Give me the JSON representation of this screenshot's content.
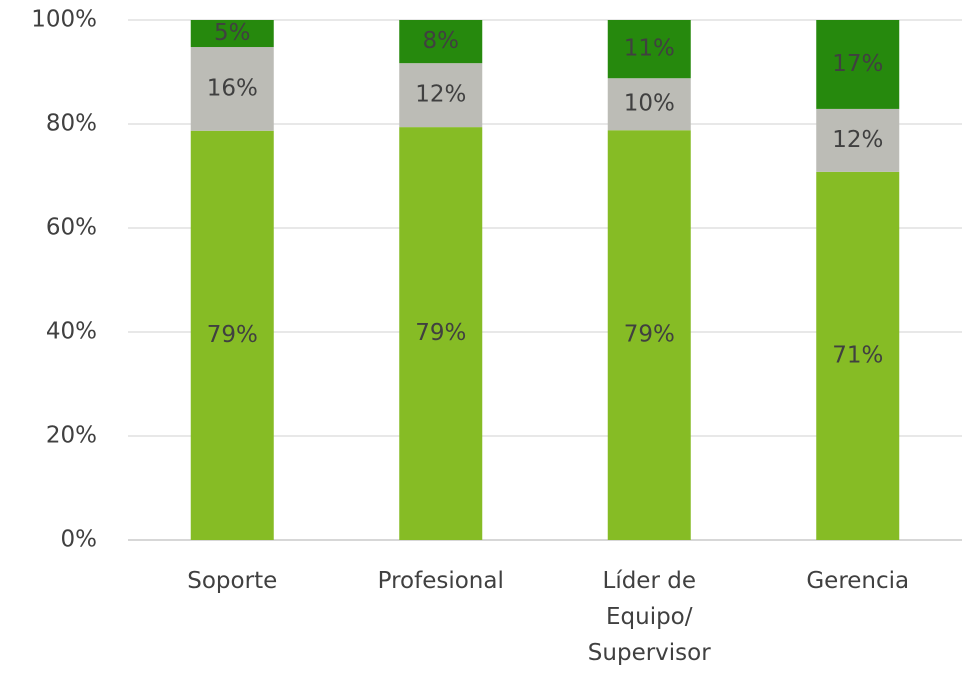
{
  "chart_data": {
    "type": "stacked_bar",
    "categories": [
      "Soporte",
      "Profesional",
      "Líder de Equipo/ Supervisor",
      "Gerencia"
    ],
    "series": [
      {
        "color": "#86bc25",
        "values": [
          78.7,
          79.4,
          78.8,
          70.8
        ],
        "value_labels": [
          "79%",
          "79%",
          "79%",
          "71%"
        ]
      },
      {
        "color": "#bcbcb6",
        "values": [
          16.1,
          12.3,
          10.0,
          12.1
        ],
        "value_labels": [
          "16%",
          "12%",
          "10%",
          "12%"
        ]
      },
      {
        "color": "#26890d",
        "values": [
          5.2,
          8.3,
          11.2,
          17.1
        ],
        "value_labels": [
          "5%",
          "8%",
          "11%",
          "17%"
        ]
      }
    ],
    "ylim": [
      0,
      100
    ],
    "yticks": [
      {
        "value": 0,
        "label": "0%"
      },
      {
        "value": 20,
        "label": "20%"
      },
      {
        "value": 40,
        "label": "40%"
      },
      {
        "value": 60,
        "label": "60%"
      },
      {
        "value": 80,
        "label": "80%"
      },
      {
        "value": 100,
        "label": "100%"
      }
    ],
    "grid": true
  }
}
